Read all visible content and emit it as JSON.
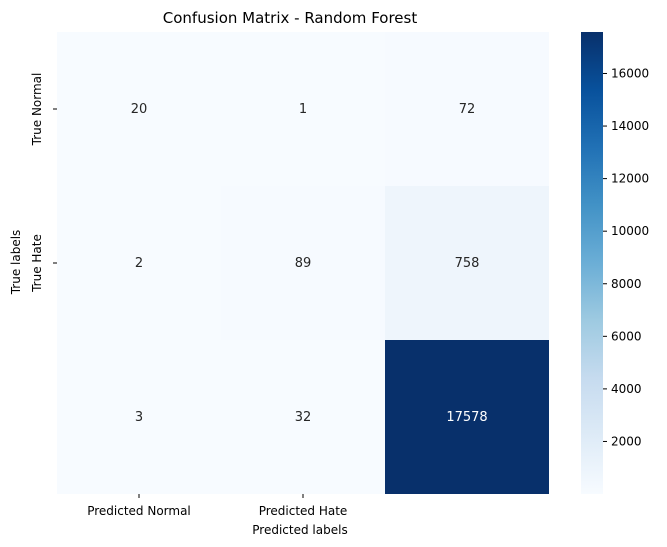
{
  "chart_data": {
    "type": "heatmap",
    "title": "Confusion Matrix - Random Forest",
    "xlabel": "Predicted labels",
    "ylabel": "True labels",
    "x_tick_labels": [
      "Predicted Normal",
      "Predicted Hate",
      ""
    ],
    "y_tick_labels": [
      "True Normal",
      "True Hate",
      ""
    ],
    "matrix": [
      [
        20,
        1,
        72
      ],
      [
        2,
        89,
        758
      ],
      [
        3,
        32,
        17578
      ]
    ],
    "colormap": "Blues",
    "color_range": [
      1,
      17578
    ],
    "colorbar_ticks": [
      2000,
      4000,
      6000,
      8000,
      10000,
      12000,
      14000,
      16000
    ],
    "grid": false
  },
  "colors": {
    "cmap_low": "#f7fbff",
    "cmap_high": "#08306b",
    "text_dark": "#262626",
    "text_light": "#ffffff"
  }
}
